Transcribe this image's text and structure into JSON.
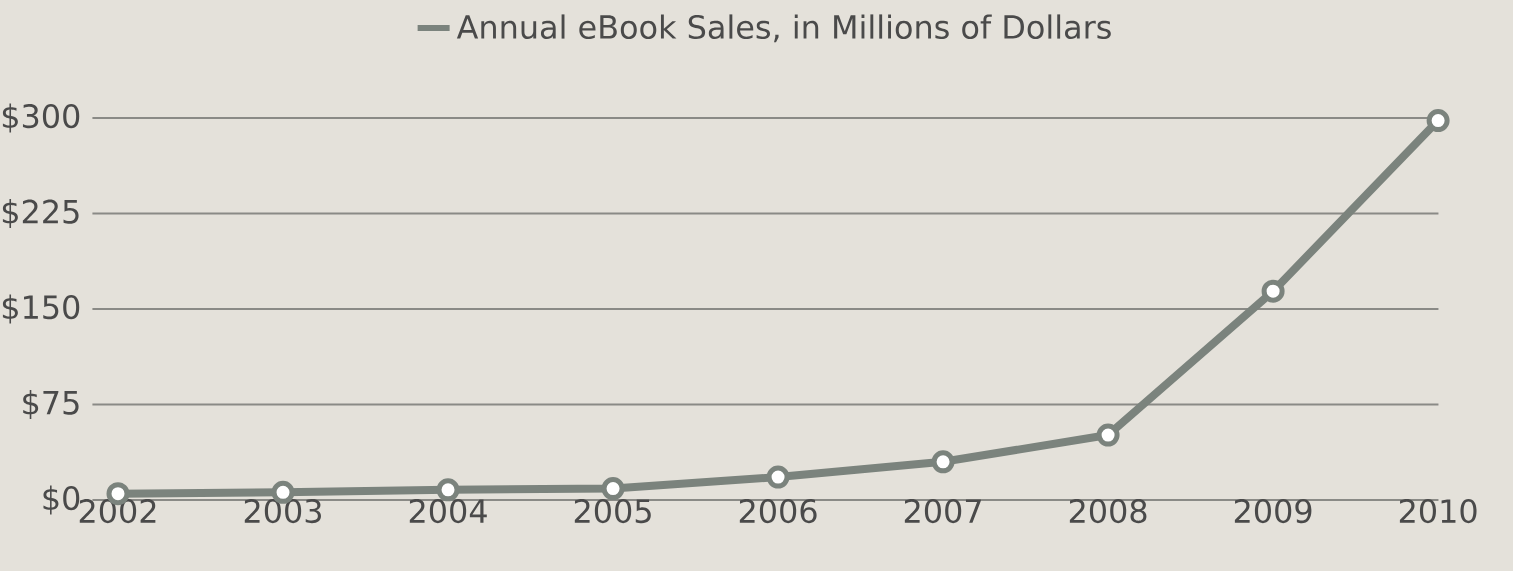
{
  "chart_data": {
    "type": "line",
    "categories": [
      "2002",
      "2003",
      "2004",
      "2005",
      "2006",
      "2007",
      "2008",
      "2009",
      "2010"
    ],
    "series": [
      {
        "name": "Annual eBook Sales, in Millions of Dollars",
        "color": "#7b837d",
        "values": [
          5,
          6,
          8,
          9,
          18,
          30,
          51,
          164,
          298
        ]
      }
    ],
    "ylim": [
      0,
      300
    ],
    "yticks": [
      {
        "value": 0,
        "label": "$0"
      },
      {
        "value": 75,
        "label": "$75"
      },
      {
        "value": 150,
        "label": "$150"
      },
      {
        "value": 225,
        "label": "$225"
      },
      {
        "value": 300,
        "label": "$300"
      }
    ],
    "grid": "y",
    "legend": "top",
    "marker": "circle",
    "line_style": "solid"
  }
}
